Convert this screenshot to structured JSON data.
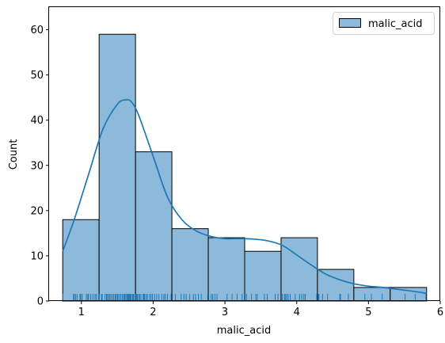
{
  "chart_data": {
    "type": "bar",
    "title": "",
    "xlabel": "malic_acid",
    "ylabel": "Count",
    "xlim": [
      0.55,
      6.0
    ],
    "ylim": [
      0,
      65
    ],
    "xticks": [
      1,
      2,
      3,
      4,
      5,
      6
    ],
    "yticks": [
      0,
      10,
      20,
      30,
      40,
      50,
      60
    ],
    "grid": false,
    "legend": {
      "placement": "top-right",
      "entries": [
        "malic_acid"
      ]
    },
    "bins": [
      {
        "x0": 0.74,
        "x1": 1.247,
        "count": 18
      },
      {
        "x0": 1.247,
        "x1": 1.754,
        "count": 59
      },
      {
        "x0": 1.754,
        "x1": 2.261,
        "count": 33
      },
      {
        "x0": 2.261,
        "x1": 2.768,
        "count": 16
      },
      {
        "x0": 2.768,
        "x1": 3.275,
        "count": 14
      },
      {
        "x0": 3.275,
        "x1": 3.782,
        "count": 11
      },
      {
        "x0": 3.782,
        "x1": 4.289,
        "count": 14
      },
      {
        "x0": 4.289,
        "x1": 4.796,
        "count": 7
      },
      {
        "x0": 4.796,
        "x1": 5.303,
        "count": 3
      },
      {
        "x0": 5.303,
        "x1": 5.81,
        "count": 3
      }
    ],
    "kde": {
      "x": [
        0.74,
        0.9,
        1.1,
        1.3,
        1.5,
        1.62,
        1.7,
        1.8,
        2.0,
        2.2,
        2.4,
        2.6,
        2.8,
        3.0,
        3.2,
        3.4,
        3.6,
        3.8,
        4.0,
        4.2,
        4.4,
        4.6,
        4.8,
        5.0,
        5.2,
        5.4,
        5.6,
        5.81
      ],
      "y": [
        11,
        18,
        28,
        38,
        43.5,
        44.5,
        44,
        41,
        32,
        23,
        18,
        15.5,
        14.3,
        13.8,
        13.8,
        13.7,
        13.3,
        12.3,
        10.2,
        8,
        6,
        4.7,
        3.8,
        3.3,
        3.0,
        2.6,
        2.2,
        1.7
      ]
    },
    "rug": [
      0.74,
      0.89,
      0.9,
      0.92,
      0.94,
      0.98,
      0.99,
      1.01,
      1.07,
      1.09,
      1.1,
      1.13,
      1.16,
      1.19,
      1.21,
      1.24,
      1.25,
      1.28,
      1.29,
      1.33,
      1.35,
      1.36,
      1.38,
      1.39,
      1.41,
      1.43,
      1.45,
      1.47,
      1.48,
      1.5,
      1.51,
      1.53,
      1.55,
      1.57,
      1.59,
      1.6,
      1.61,
      1.63,
      1.64,
      1.65,
      1.66,
      1.67,
      1.68,
      1.69,
      1.71,
      1.72,
      1.73,
      1.75,
      1.77,
      1.78,
      1.8,
      1.81,
      1.83,
      1.86,
      1.87,
      1.88,
      1.9,
      1.92,
      1.95,
      1.97,
      1.99,
      2.02,
      2.05,
      2.08,
      2.12,
      2.15,
      2.17,
      2.2,
      2.25,
      2.31,
      2.39,
      2.43,
      2.46,
      2.51,
      2.56,
      2.59,
      2.63,
      2.67,
      2.76,
      2.81,
      2.83,
      2.86,
      2.89,
      3.03,
      3.1,
      3.17,
      3.24,
      3.27,
      3.3,
      3.37,
      3.43,
      3.45,
      3.55,
      3.59,
      3.7,
      3.74,
      3.8,
      3.83,
      3.84,
      3.86,
      3.88,
      3.91,
      3.98,
      4.04,
      4.07,
      4.1,
      4.12,
      4.28,
      4.3,
      4.31,
      4.36,
      4.43,
      4.6,
      4.61,
      4.72,
      4.95,
      5.04,
      5.19,
      5.51,
      5.65,
      5.8
    ],
    "series": [
      {
        "name": "malic_acid",
        "color": "#1f77b4",
        "fill": "#8dbadb"
      }
    ]
  }
}
